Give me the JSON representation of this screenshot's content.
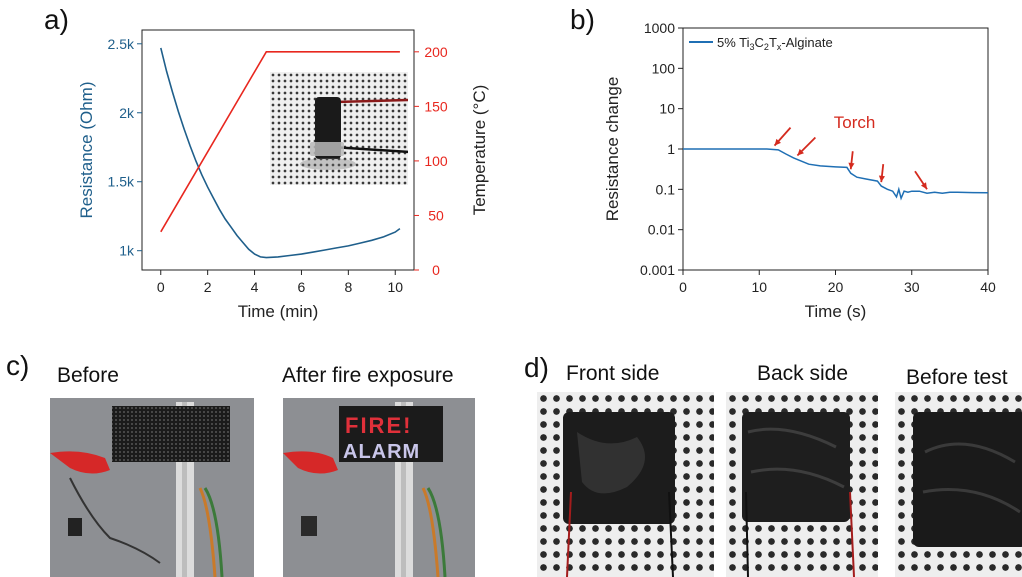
{
  "panels": {
    "a": {
      "letter": "a)"
    },
    "b": {
      "letter": "b)"
    },
    "c": {
      "letter": "c)",
      "before_label": "Before",
      "after_label": "After fire exposure",
      "led_line1": "FIRE!",
      "led_line2": "ALARM"
    },
    "d": {
      "letter": "d)",
      "front_label": "Front side",
      "back_label": "Back side",
      "before_test_label": "Before test"
    }
  },
  "chart_data": [
    {
      "id": "a",
      "type": "line",
      "xlabel": "Time (min)",
      "ylabel": "Resistance (Ohm)",
      "y2label": "Temperature (°C)",
      "xlim": [
        -0.8,
        10.8
      ],
      "ylim": [
        860,
        2600
      ],
      "y2lim": [
        0,
        220
      ],
      "xticks": [
        0,
        2,
        4,
        6,
        8,
        10
      ],
      "yticks": [
        1000,
        1500,
        2000,
        2500
      ],
      "ytick_labels": [
        "1k",
        "1.5k",
        "2k",
        "2.5k"
      ],
      "y2ticks": [
        0,
        50,
        100,
        150,
        200
      ],
      "series": [
        {
          "axis": "left",
          "color": "#1f5f8b",
          "x": [
            0,
            0.25,
            0.5,
            0.75,
            1,
            1.25,
            1.5,
            1.75,
            2,
            2.25,
            2.5,
            2.75,
            3,
            3.25,
            3.5,
            3.75,
            4,
            4.25,
            4.5,
            5,
            5.5,
            6,
            6.5,
            7,
            7.5,
            8,
            8.5,
            9,
            9.5,
            10,
            10.2
          ],
          "y": [
            2470,
            2300,
            2150,
            2010,
            1880,
            1760,
            1650,
            1550,
            1460,
            1380,
            1300,
            1230,
            1170,
            1110,
            1060,
            1010,
            975,
            955,
            950,
            955,
            965,
            975,
            990,
            1005,
            1020,
            1035,
            1055,
            1075,
            1100,
            1135,
            1160
          ]
        },
        {
          "axis": "right",
          "color": "#e8271f",
          "x": [
            0,
            4.5,
            10.2
          ],
          "y": [
            35,
            200,
            200
          ]
        }
      ],
      "inset_photo": true
    },
    {
      "id": "b",
      "type": "line",
      "xlabel": "Time (s)",
      "ylabel": "Resistance change",
      "yscale": "log",
      "xlim": [
        0,
        40
      ],
      "ylim": [
        0.001,
        1000
      ],
      "xticks": [
        0,
        10,
        20,
        30,
        40
      ],
      "yticks": [
        0.001,
        0.01,
        0.1,
        1,
        10,
        100,
        1000
      ],
      "ytick_labels": [
        "0.001",
        "0.01",
        "0.1",
        "1",
        "10",
        "100",
        "1000"
      ],
      "annotation": "Torch",
      "arrows_at_x": [
        12,
        15,
        22,
        26,
        32
      ],
      "series": [
        {
          "name": "5% Ti3C2Tx-Alginate",
          "color": "#1f6fb4",
          "x": [
            0,
            11,
            12.5,
            13.5,
            14.5,
            15.5,
            16.5,
            18,
            20,
            21.5,
            22,
            22.8,
            24,
            25.5,
            26,
            26.8,
            27.5,
            28,
            28.3,
            28.6,
            29,
            29.5,
            30,
            31,
            32,
            33,
            34,
            35,
            36,
            38,
            40
          ],
          "y": [
            1,
            1,
            0.95,
            0.75,
            0.6,
            0.5,
            0.42,
            0.38,
            0.36,
            0.35,
            0.25,
            0.2,
            0.18,
            0.16,
            0.12,
            0.1,
            0.09,
            0.065,
            0.1,
            0.06,
            0.09,
            0.085,
            0.09,
            0.09,
            0.08,
            0.085,
            0.08,
            0.085,
            0.085,
            0.083,
            0.082
          ]
        }
      ]
    }
  ],
  "colors": {
    "resistance": "#1f5f8b",
    "temperature": "#e8271f",
    "arrow": "#d42a1e",
    "legend_line": "#1f6fb4"
  }
}
